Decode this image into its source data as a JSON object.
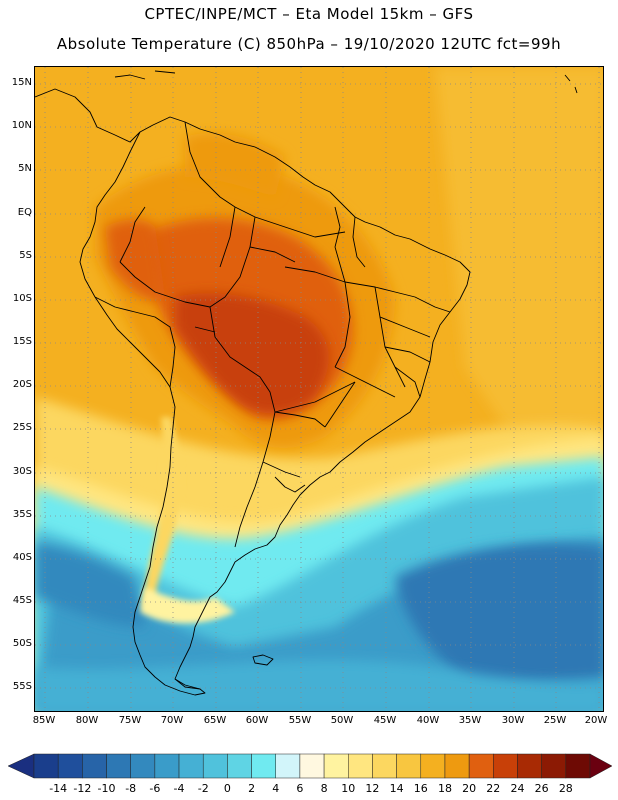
{
  "title_line1": "CPTEC/INPE/MCT –  Eta Model 15km – GFS",
  "title_line2": "Absolute Temperature (C) 850hPa – 19/10/2020 12UTC fct=99h",
  "map": {
    "variable": "Absolute Temperature (C) 850hPa",
    "model": "Eta 15km",
    "region": "South America",
    "lat_labels": [
      "15N",
      "10N",
      "5N",
      "EQ",
      "5S",
      "10S",
      "15S",
      "20S",
      "25S",
      "30S",
      "35S",
      "40S",
      "45S",
      "50S",
      "55S"
    ],
    "lon_labels": [
      "85W",
      "80W",
      "75W",
      "70W",
      "65W",
      "60W",
      "55W",
      "50W",
      "45W",
      "40W",
      "35W",
      "30W",
      "25W",
      "20W"
    ],
    "colors": {
      "land_border": "#000000",
      "gridline": "#888888"
    }
  },
  "colorbar": {
    "ticks": [
      "-14",
      "-12",
      "-10",
      "-8",
      "-6",
      "-4",
      "-2",
      "0",
      "2",
      "4",
      "6",
      "8",
      "10",
      "12",
      "14",
      "16",
      "18",
      "20",
      "22",
      "24",
      "26",
      "28"
    ],
    "colors": [
      "#1a3e8c",
      "#1f4f9c",
      "#2764a8",
      "#2d78b4",
      "#3389be",
      "#3a9cc9",
      "#45b0d4",
      "#50c2dc",
      "#5fd4e4",
      "#70eaf0",
      "#d2f5fa",
      "#fff8e0",
      "#fff3a0",
      "#ffe680",
      "#fcd760",
      "#f8c640",
      "#f4b020",
      "#ee9a10",
      "#e06010",
      "#c84008",
      "#a82a04",
      "#8c1a04",
      "#6e0a04"
    ],
    "under_color": "#1a2f80",
    "over_color": "#6a0010"
  }
}
